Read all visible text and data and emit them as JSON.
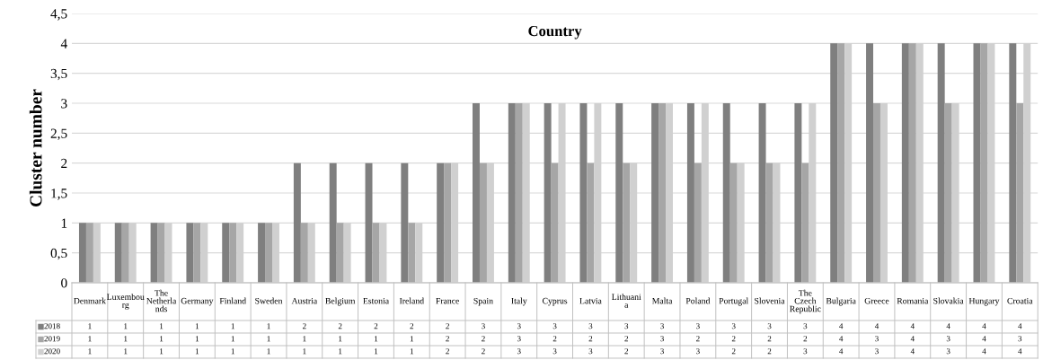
{
  "chart_data": {
    "type": "bar",
    "title": "Country",
    "ylabel": "Cluster number",
    "categories": [
      "Denmark",
      "Luxembourg",
      "The Netherlands",
      "Germany",
      "Finland",
      "Sweden",
      "Austria",
      "Belgium",
      "Estonia",
      "Ireland",
      "France",
      "Spain",
      "Italy",
      "Cyprus",
      "Latvia",
      "Lithuania",
      "Malta",
      "Poland",
      "Portugal",
      "Slovenia",
      "The Czech Republic",
      "Bulgaria",
      "Greece",
      "Romania",
      "Slovakia",
      "Hungary",
      "Croatia"
    ],
    "series": [
      {
        "name": "2018",
        "color": "#7f7f7f",
        "values": [
          1,
          1,
          1,
          1,
          1,
          1,
          2,
          2,
          2,
          2,
          2,
          3,
          3,
          3,
          3,
          3,
          3,
          3,
          3,
          3,
          3,
          4,
          4,
          4,
          4,
          4,
          4
        ]
      },
      {
        "name": "2019",
        "color": "#a6a6a6",
        "values": [
          1,
          1,
          1,
          1,
          1,
          1,
          1,
          1,
          1,
          1,
          2,
          2,
          3,
          2,
          2,
          2,
          3,
          2,
          2,
          2,
          2,
          4,
          3,
          4,
          3,
          4,
          3
        ]
      },
      {
        "name": "2020",
        "color": "#d0d0d0",
        "values": [
          1,
          1,
          1,
          1,
          1,
          1,
          1,
          1,
          1,
          1,
          2,
          2,
          3,
          3,
          3,
          2,
          3,
          3,
          2,
          2,
          3,
          4,
          3,
          4,
          3,
          4,
          4
        ]
      }
    ],
    "ylim": [
      0,
      4.5
    ],
    "yticks": [
      0,
      {
        "value": 0.5,
        "label": "0,5"
      },
      1,
      {
        "value": 1.5,
        "label": "1,5"
      },
      2,
      {
        "value": 2.5,
        "label": "2,5"
      },
      3,
      {
        "value": 3.5,
        "label": "3,5"
      },
      4,
      {
        "value": 4.5,
        "label": "4,5"
      }
    ],
    "grid": "y",
    "data_labels": true,
    "legend": "bottom left"
  }
}
